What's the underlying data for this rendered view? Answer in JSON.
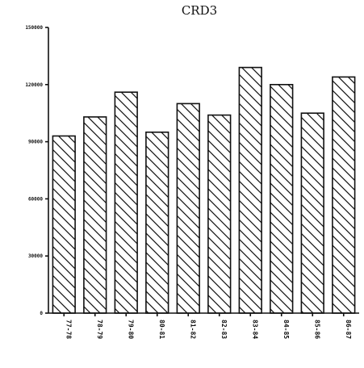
{
  "chart_data": {
    "type": "bar",
    "title": "CRD3",
    "xlabel": "",
    "ylabel": "",
    "categories": [
      "77-78",
      "78-79",
      "79-80",
      "80-81",
      "81-82",
      "82-83",
      "83-84",
      "84-85",
      "85-86",
      "86-87"
    ],
    "values": [
      93000,
      103000,
      116000,
      95000,
      110000,
      104000,
      129000,
      120000,
      105000,
      124000
    ],
    "ylim": [
      0,
      150000
    ],
    "yticks": [
      0,
      30000,
      60000,
      90000,
      120000,
      150000
    ],
    "ytick_labels": [
      "0",
      "30000",
      "60000",
      "90000",
      "120000",
      "150000"
    ],
    "grid": false,
    "legend": "none",
    "bar_fill": "hatched",
    "colors": {
      "ink": "#111111",
      "background": "#ffffff"
    }
  }
}
